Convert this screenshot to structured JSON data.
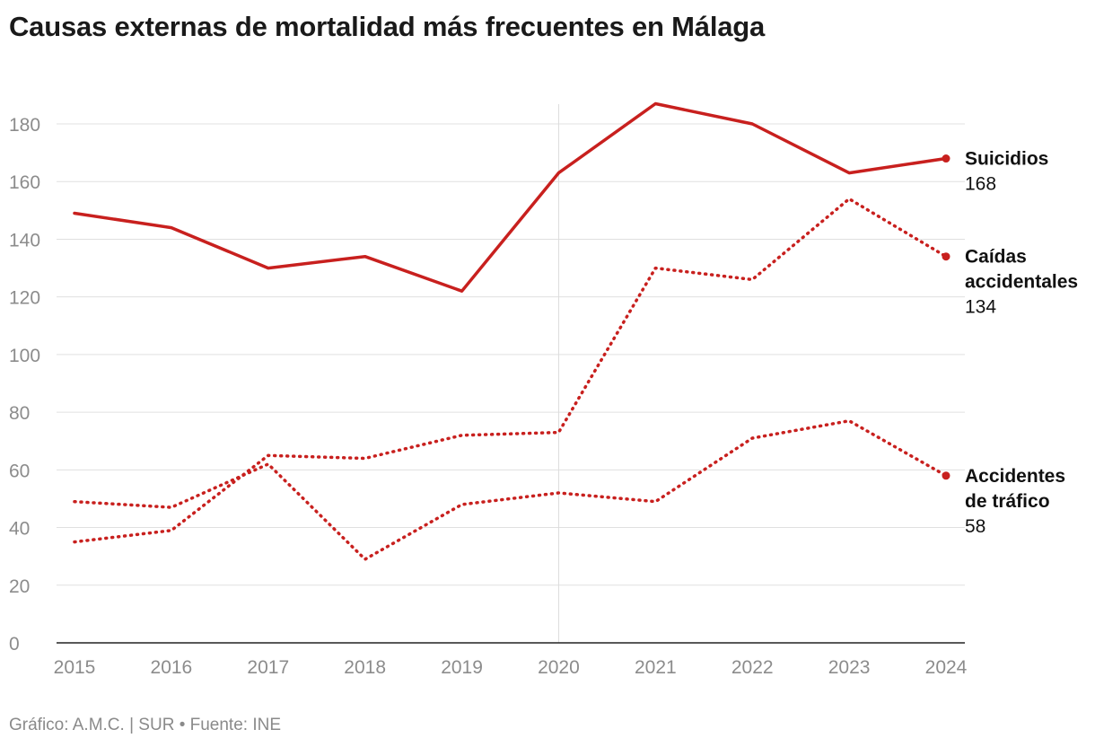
{
  "title": "Causas externas de mortalidad más frecuentes en Málaga",
  "footer": "Gráfico: A.M.C. | SUR • Fuente: INE",
  "chart_data": {
    "type": "line",
    "title": "Causas externas de mortalidad más frecuentes en Málaga",
    "xlabel": "",
    "ylabel": "",
    "x": [
      2015,
      2016,
      2017,
      2018,
      2019,
      2020,
      2021,
      2022,
      2023,
      2024
    ],
    "ylim": [
      0,
      180
    ],
    "yticks": [
      0,
      20,
      40,
      60,
      80,
      100,
      120,
      140,
      160,
      180
    ],
    "grid": true,
    "highlight_x": 2020,
    "series": [
      {
        "name": "Suicidios",
        "name_lines": [
          "Suicidios"
        ],
        "values": [
          149,
          144,
          130,
          134,
          122,
          163,
          187,
          180,
          163,
          168
        ],
        "last_label": "168",
        "style": "solid",
        "color": "#c8201e"
      },
      {
        "name": "Caídas accidentales",
        "name_lines": [
          "Caídas",
          "accidentales"
        ],
        "values": [
          35,
          39,
          65,
          64,
          72,
          73,
          130,
          126,
          154,
          134
        ],
        "last_label": "134",
        "style": "dotted",
        "color": "#c8201e"
      },
      {
        "name": "Accidentes de tráfico",
        "name_lines": [
          "Accidentes",
          "de tráfico"
        ],
        "values": [
          49,
          47,
          62,
          29,
          48,
          52,
          49,
          71,
          77,
          58
        ],
        "last_label": "58",
        "style": "dotted",
        "color": "#c8201e"
      }
    ]
  }
}
